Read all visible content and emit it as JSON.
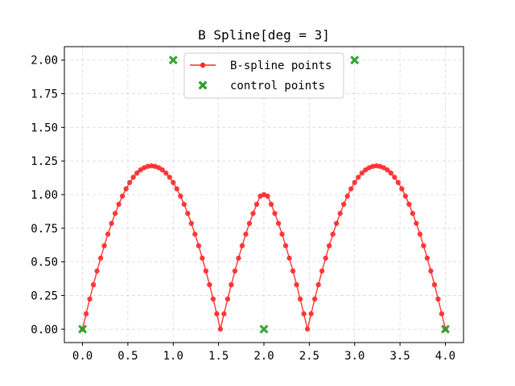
{
  "chart_data": {
    "type": "line",
    "title": "B Spline[deg = 3]",
    "xlabel": "",
    "ylabel": "",
    "xlim": [
      -0.2,
      4.2
    ],
    "ylim": [
      -0.1,
      2.1
    ],
    "xticks": [
      "0.0",
      "0.5",
      "1.0",
      "1.5",
      "2.0",
      "2.5",
      "3.0",
      "3.5",
      "4.0"
    ],
    "yticks": [
      "0.00",
      "0.25",
      "0.50",
      "0.75",
      "1.00",
      "1.25",
      "1.50",
      "1.75",
      "2.00"
    ],
    "grid": true,
    "legend_position": "top-center",
    "series": [
      {
        "name": "B-spline points",
        "kind": "line-with-markers",
        "color": "#ff2a2a",
        "x": [
          0.0,
          0.04,
          0.08,
          0.12,
          0.16,
          0.2,
          0.24,
          0.28,
          0.32,
          0.36,
          0.4,
          0.44,
          0.48,
          0.52,
          0.56,
          0.6,
          0.64,
          0.68,
          0.72,
          0.76,
          0.8,
          0.84,
          0.88,
          0.92,
          0.96,
          1.0,
          1.04,
          1.08,
          1.12,
          1.16,
          1.2,
          1.24,
          1.28,
          1.32,
          1.36,
          1.4,
          1.44,
          1.48,
          1.52,
          1.56,
          1.6,
          1.64,
          1.68,
          1.72,
          1.76,
          1.8,
          1.84,
          1.88,
          1.92,
          1.96,
          2.0,
          2.04,
          2.08,
          2.12,
          2.16,
          2.2,
          2.24,
          2.28,
          2.32,
          2.36,
          2.4,
          2.44,
          2.48,
          2.52,
          2.56,
          2.6,
          2.64,
          2.68,
          2.72,
          2.76,
          2.8,
          2.84,
          2.88,
          2.92,
          2.96,
          3.0,
          3.04,
          3.08,
          3.12,
          3.16,
          3.2,
          3.24,
          3.28,
          3.32,
          3.36,
          3.4,
          3.44,
          3.48,
          3.52,
          3.56,
          3.6,
          3.64,
          3.68,
          3.72,
          3.76,
          3.8,
          3.84,
          3.88,
          3.92,
          3.96,
          4.0
        ],
        "y": [
          0.0,
          0.114,
          0.224,
          0.33,
          0.432,
          0.528,
          0.62,
          0.706,
          0.786,
          0.86,
          0.928,
          0.989,
          1.043,
          1.09,
          1.129,
          1.16,
          1.184,
          1.2,
          1.21,
          1.214,
          1.21,
          1.2,
          1.184,
          1.16,
          1.129,
          1.09,
          1.043,
          0.989,
          0.928,
          0.86,
          0.786,
          0.706,
          0.62,
          0.528,
          0.432,
          0.33,
          0.224,
          0.114,
          0.0,
          0.114,
          0.224,
          0.33,
          0.432,
          0.528,
          0.62,
          0.706,
          0.786,
          0.86,
          0.928,
          0.989,
          1.0,
          0.989,
          0.928,
          0.86,
          0.786,
          0.706,
          0.62,
          0.528,
          0.432,
          0.33,
          0.224,
          0.114,
          0.0,
          0.114,
          0.224,
          0.33,
          0.432,
          0.528,
          0.62,
          0.706,
          0.786,
          0.86,
          0.928,
          0.989,
          1.043,
          1.09,
          1.129,
          1.16,
          1.184,
          1.2,
          1.21,
          1.214,
          1.21,
          1.2,
          1.184,
          1.16,
          1.129,
          1.09,
          1.043,
          0.989,
          0.928,
          0.86,
          0.786,
          0.706,
          0.62,
          0.528,
          0.432,
          0.33,
          0.224,
          0.114,
          0.0
        ]
      },
      {
        "name": "control points",
        "kind": "markers",
        "marker": "X",
        "color": "#2ca02c",
        "x": [
          0,
          1,
          2,
          3,
          4
        ],
        "y": [
          0,
          2,
          0,
          2,
          0
        ]
      }
    ]
  }
}
